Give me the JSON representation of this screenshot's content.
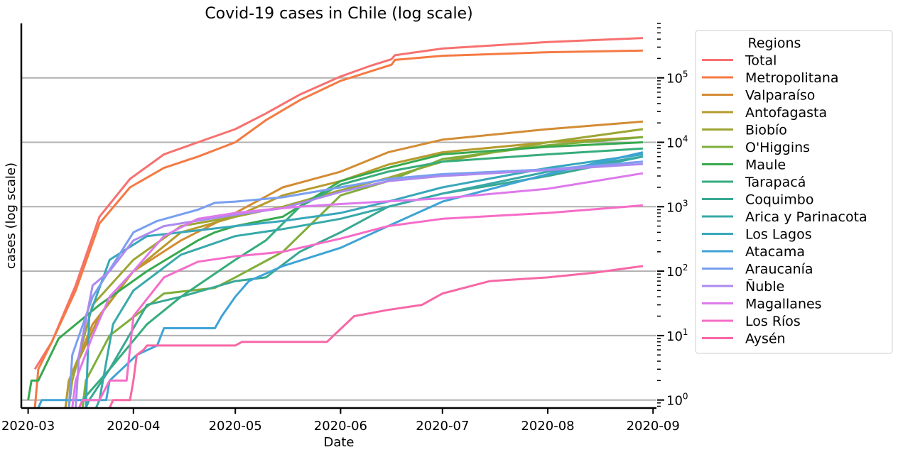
{
  "chart_data": {
    "type": "line",
    "title": "Covid-19 cases in Chile (log scale)",
    "xlabel": "Date",
    "ylabel": "cases (log scale)",
    "yscale": "log",
    "ylim": [
      0.75,
      700000
    ],
    "xlim": [
      "2020-02-28",
      "2020-09-02"
    ],
    "grid": "horizontal major",
    "y_axis_side": "right",
    "x_ticks": [
      "2020-03",
      "2020-04",
      "2020-05",
      "2020-06",
      "2020-07",
      "2020-08",
      "2020-09"
    ],
    "x_tick_dates": [
      "2020-03-01",
      "2020-04-01",
      "2020-05-01",
      "2020-06-01",
      "2020-07-01",
      "2020-08-01",
      "2020-09-01"
    ],
    "y_ticks": [
      1,
      10,
      100,
      1000,
      10000,
      100000
    ],
    "y_tick_labels": [
      {
        "base": "10",
        "exp": "0"
      },
      {
        "base": "10",
        "exp": "1"
      },
      {
        "base": "10",
        "exp": "2"
      },
      {
        "base": "10",
        "exp": "3"
      },
      {
        "base": "10",
        "exp": "4"
      },
      {
        "base": "10",
        "exp": "5"
      }
    ],
    "legend_title": "Regions",
    "legend_position": "outside right",
    "series": [
      {
        "name": "Total",
        "color": "#f7716f",
        "points": [
          [
            "2020-03-03",
            3
          ],
          [
            "2020-03-08",
            8
          ],
          [
            "2020-03-15",
            60
          ],
          [
            "2020-03-22",
            700
          ],
          [
            "2020-03-31",
            2700
          ],
          [
            "2020-04-10",
            6500
          ],
          [
            "2020-04-20",
            10000
          ],
          [
            "2020-05-01",
            16000
          ],
          [
            "2020-05-10",
            28000
          ],
          [
            "2020-05-20",
            55000
          ],
          [
            "2020-06-01",
            105000
          ],
          [
            "2020-06-10",
            155000
          ],
          [
            "2020-06-16",
            195000
          ],
          [
            "2020-06-17",
            225000
          ],
          [
            "2020-07-01",
            285000
          ],
          [
            "2020-08-01",
            360000
          ],
          [
            "2020-08-29",
            415000
          ]
        ]
      },
      {
        "name": "Metropolitana",
        "color": "#f47a43",
        "points": [
          [
            "2020-03-03",
            0.6
          ],
          [
            "2020-03-04",
            3
          ],
          [
            "2020-03-08",
            8
          ],
          [
            "2020-03-15",
            50
          ],
          [
            "2020-03-22",
            550
          ],
          [
            "2020-03-31",
            2000
          ],
          [
            "2020-04-10",
            4000
          ],
          [
            "2020-04-20",
            6000
          ],
          [
            "2020-05-01",
            10000
          ],
          [
            "2020-05-10",
            22000
          ],
          [
            "2020-05-20",
            45000
          ],
          [
            "2020-06-01",
            90000
          ],
          [
            "2020-06-16",
            160000
          ],
          [
            "2020-06-17",
            190000
          ],
          [
            "2020-07-01",
            220000
          ],
          [
            "2020-08-01",
            250000
          ],
          [
            "2020-08-29",
            265000
          ]
        ]
      },
      {
        "name": "Valparaíso",
        "color": "#d38c34",
        "points": [
          [
            "2020-03-12",
            0.6
          ],
          [
            "2020-03-13",
            2
          ],
          [
            "2020-03-20",
            15
          ],
          [
            "2020-04-01",
            100
          ],
          [
            "2020-04-15",
            300
          ],
          [
            "2020-05-01",
            800
          ],
          [
            "2020-05-15",
            2000
          ],
          [
            "2020-06-01",
            3500
          ],
          [
            "2020-06-15",
            7000
          ],
          [
            "2020-07-01",
            11000
          ],
          [
            "2020-08-01",
            16000
          ],
          [
            "2020-08-29",
            21000
          ]
        ]
      },
      {
        "name": "Antofagasta",
        "color": "#b69b2c",
        "points": [
          [
            "2020-03-12",
            0.6
          ],
          [
            "2020-03-13",
            2
          ],
          [
            "2020-03-22",
            20
          ],
          [
            "2020-04-01",
            100
          ],
          [
            "2020-04-15",
            400
          ],
          [
            "2020-05-01",
            700
          ],
          [
            "2020-05-15",
            1500
          ],
          [
            "2020-06-01",
            2500
          ],
          [
            "2020-06-15",
            4500
          ],
          [
            "2020-07-01",
            7000
          ],
          [
            "2020-08-01",
            10000
          ],
          [
            "2020-08-29",
            12000
          ]
        ]
      },
      {
        "name": "Biobío",
        "color": "#9da634",
        "points": [
          [
            "2020-03-13",
            0.6
          ],
          [
            "2020-03-14",
            2
          ],
          [
            "2020-03-20",
            30
          ],
          [
            "2020-04-01",
            150
          ],
          [
            "2020-04-15",
            500
          ],
          [
            "2020-05-01",
            700
          ],
          [
            "2020-05-15",
            1000
          ],
          [
            "2020-06-01",
            1800
          ],
          [
            "2020-06-15",
            2800
          ],
          [
            "2020-07-01",
            5000
          ],
          [
            "2020-08-01",
            10000
          ],
          [
            "2020-08-29",
            16000
          ]
        ]
      },
      {
        "name": "O'Higgins",
        "color": "#7fae3a",
        "points": [
          [
            "2020-03-17",
            0.6
          ],
          [
            "2020-03-18",
            2
          ],
          [
            "2020-03-25",
            10
          ],
          [
            "2020-04-10",
            45
          ],
          [
            "2020-04-25",
            55
          ],
          [
            "2020-05-01",
            80
          ],
          [
            "2020-05-15",
            200
          ],
          [
            "2020-06-01",
            1500
          ],
          [
            "2020-06-15",
            2500
          ],
          [
            "2020-07-01",
            5500
          ],
          [
            "2020-08-01",
            9000
          ],
          [
            "2020-08-29",
            12000
          ]
        ]
      },
      {
        "name": "Maule",
        "color": "#37a94f",
        "points": [
          [
            "2020-03-01",
            1
          ],
          [
            "2020-03-02",
            2
          ],
          [
            "2020-03-04",
            2
          ],
          [
            "2020-03-10",
            9
          ],
          [
            "2020-03-22",
            30
          ],
          [
            "2020-04-05",
            100
          ],
          [
            "2020-04-20",
            300
          ],
          [
            "2020-04-25",
            400
          ],
          [
            "2020-05-01",
            500
          ],
          [
            "2020-05-15",
            700
          ],
          [
            "2020-06-01",
            2500
          ],
          [
            "2020-06-15",
            4000
          ],
          [
            "2020-07-01",
            6500
          ],
          [
            "2020-08-01",
            8500
          ],
          [
            "2020-08-29",
            10000
          ]
        ]
      },
      {
        "name": "Tarapacá",
        "color": "#36ad7c",
        "points": [
          [
            "2020-03-16",
            0.6
          ],
          [
            "2020-03-17",
            1
          ],
          [
            "2020-03-25",
            3
          ],
          [
            "2020-04-05",
            15
          ],
          [
            "2020-04-15",
            40
          ],
          [
            "2020-05-01",
            150
          ],
          [
            "2020-05-10",
            300
          ],
          [
            "2020-05-20",
            1000
          ],
          [
            "2020-06-01",
            2200
          ],
          [
            "2020-06-15",
            3500
          ],
          [
            "2020-07-01",
            5000
          ],
          [
            "2020-08-01",
            6500
          ],
          [
            "2020-08-29",
            8000
          ]
        ]
      },
      {
        "name": "Coquimbo",
        "color": "#38a892",
        "points": [
          [
            "2020-03-18",
            0.6
          ],
          [
            "2020-03-19",
            1
          ],
          [
            "2020-03-25",
            3
          ],
          [
            "2020-04-05",
            30
          ],
          [
            "2020-04-15",
            40
          ],
          [
            "2020-05-01",
            70
          ],
          [
            "2020-05-10",
            80
          ],
          [
            "2020-05-20",
            200
          ],
          [
            "2020-06-01",
            400
          ],
          [
            "2020-06-15",
            1000
          ],
          [
            "2020-07-01",
            1600
          ],
          [
            "2020-08-01",
            3000
          ],
          [
            "2020-08-29",
            6000
          ]
        ]
      },
      {
        "name": "Arica y Parinacota",
        "color": "#38a9a9",
        "points": [
          [
            "2020-03-21",
            0.6
          ],
          [
            "2020-03-22",
            1
          ],
          [
            "2020-03-26",
            15
          ],
          [
            "2020-04-01",
            50
          ],
          [
            "2020-04-15",
            180
          ],
          [
            "2020-05-01",
            350
          ],
          [
            "2020-05-15",
            450
          ],
          [
            "2020-06-01",
            650
          ],
          [
            "2020-06-15",
            1000
          ],
          [
            "2020-07-01",
            1600
          ],
          [
            "2020-08-01",
            3500
          ],
          [
            "2020-08-29",
            6000
          ]
        ]
      },
      {
        "name": "Los Lagos",
        "color": "#39a7bb",
        "points": [
          [
            "2020-03-18",
            0.6
          ],
          [
            "2020-03-19",
            20
          ],
          [
            "2020-03-25",
            150
          ],
          [
            "2020-04-05",
            350
          ],
          [
            "2020-04-15",
            400
          ],
          [
            "2020-05-01",
            500
          ],
          [
            "2020-05-15",
            600
          ],
          [
            "2020-06-01",
            800
          ],
          [
            "2020-06-15",
            1200
          ],
          [
            "2020-07-01",
            2000
          ],
          [
            "2020-08-01",
            4000
          ],
          [
            "2020-08-29",
            6500
          ]
        ]
      },
      {
        "name": "Atacama",
        "color": "#3fa3d6",
        "points": [
          [
            "2020-03-04",
            0.6
          ],
          [
            "2020-03-05",
            1
          ],
          [
            "2020-03-24",
            1
          ],
          [
            "2020-03-25",
            2
          ],
          [
            "2020-04-02",
            5
          ],
          [
            "2020-04-08",
            7
          ],
          [
            "2020-04-10",
            13
          ],
          [
            "2020-04-25",
            13
          ],
          [
            "2020-04-27",
            20
          ],
          [
            "2020-05-01",
            40
          ],
          [
            "2020-05-05",
            70
          ],
          [
            "2020-05-15",
            120
          ],
          [
            "2020-06-01",
            230
          ],
          [
            "2020-06-15",
            500
          ],
          [
            "2020-07-01",
            1200
          ],
          [
            "2020-08-01",
            3200
          ],
          [
            "2020-08-29",
            7000
          ]
        ]
      },
      {
        "name": "Araucanía",
        "color": "#799ff0",
        "points": [
          [
            "2020-03-13",
            0.6
          ],
          [
            "2020-03-14",
            5
          ],
          [
            "2020-03-20",
            40
          ],
          [
            "2020-04-01",
            400
          ],
          [
            "2020-04-08",
            600
          ],
          [
            "2020-04-20",
            900
          ],
          [
            "2020-04-25",
            1150
          ],
          [
            "2020-05-01",
            1200
          ],
          [
            "2020-05-15",
            1400
          ],
          [
            "2020-06-01",
            2000
          ],
          [
            "2020-06-15",
            2700
          ],
          [
            "2020-07-01",
            3200
          ],
          [
            "2020-08-01",
            3800
          ],
          [
            "2020-08-29",
            5000
          ]
        ]
      },
      {
        "name": "Ñuble",
        "color": "#ac8aef",
        "points": [
          [
            "2020-03-15",
            0.6
          ],
          [
            "2020-03-16",
            5
          ],
          [
            "2020-03-20",
            60
          ],
          [
            "2020-03-25",
            100
          ],
          [
            "2020-04-01",
            300
          ],
          [
            "2020-04-10",
            500
          ],
          [
            "2020-05-01",
            750
          ],
          [
            "2020-05-15",
            950
          ],
          [
            "2020-06-01",
            1700
          ],
          [
            "2020-06-15",
            2500
          ],
          [
            "2020-07-01",
            3000
          ],
          [
            "2020-08-01",
            3700
          ],
          [
            "2020-08-29",
            4600
          ]
        ]
      },
      {
        "name": "Magallanes",
        "color": "#de79ec",
        "points": [
          [
            "2020-03-14",
            0.6
          ],
          [
            "2020-03-15",
            2
          ],
          [
            "2020-03-20",
            10
          ],
          [
            "2020-03-25",
            40
          ],
          [
            "2020-04-01",
            100
          ],
          [
            "2020-04-10",
            350
          ],
          [
            "2020-04-20",
            650
          ],
          [
            "2020-05-01",
            800
          ],
          [
            "2020-05-10",
            900
          ],
          [
            "2020-05-20",
            1000
          ],
          [
            "2020-06-01",
            1100
          ],
          [
            "2020-07-01",
            1350
          ],
          [
            "2020-08-01",
            1900
          ],
          [
            "2020-08-29",
            3300
          ]
        ]
      },
      {
        "name": "Los Ríos",
        "color": "#f66cc7",
        "points": [
          [
            "2020-03-16",
            0.6
          ],
          [
            "2020-03-17",
            1
          ],
          [
            "2020-03-22",
            1
          ],
          [
            "2020-03-25",
            2
          ],
          [
            "2020-03-30",
            2
          ],
          [
            "2020-04-01",
            20
          ],
          [
            "2020-04-10",
            80
          ],
          [
            "2020-04-20",
            140
          ],
          [
            "2020-05-01",
            170
          ],
          [
            "2020-05-15",
            200
          ],
          [
            "2020-06-01",
            320
          ],
          [
            "2020-06-15",
            500
          ],
          [
            "2020-07-01",
            650
          ],
          [
            "2020-08-01",
            800
          ],
          [
            "2020-08-29",
            1050
          ]
        ]
      },
      {
        "name": "Aysén",
        "color": "#f767a6",
        "points": [
          [
            "2020-03-25",
            0.6
          ],
          [
            "2020-03-26",
            1
          ],
          [
            "2020-03-31",
            1
          ],
          [
            "2020-04-01",
            2
          ],
          [
            "2020-04-02",
            5
          ],
          [
            "2020-04-04",
            6
          ],
          [
            "2020-04-05",
            7
          ],
          [
            "2020-05-01",
            7
          ],
          [
            "2020-05-03",
            8
          ],
          [
            "2020-05-28",
            8
          ],
          [
            "2020-06-05",
            20
          ],
          [
            "2020-06-15",
            25
          ],
          [
            "2020-06-25",
            30
          ],
          [
            "2020-07-01",
            45
          ],
          [
            "2020-07-15",
            70
          ],
          [
            "2020-08-01",
            80
          ],
          [
            "2020-08-15",
            95
          ],
          [
            "2020-08-29",
            120
          ]
        ]
      }
    ]
  }
}
